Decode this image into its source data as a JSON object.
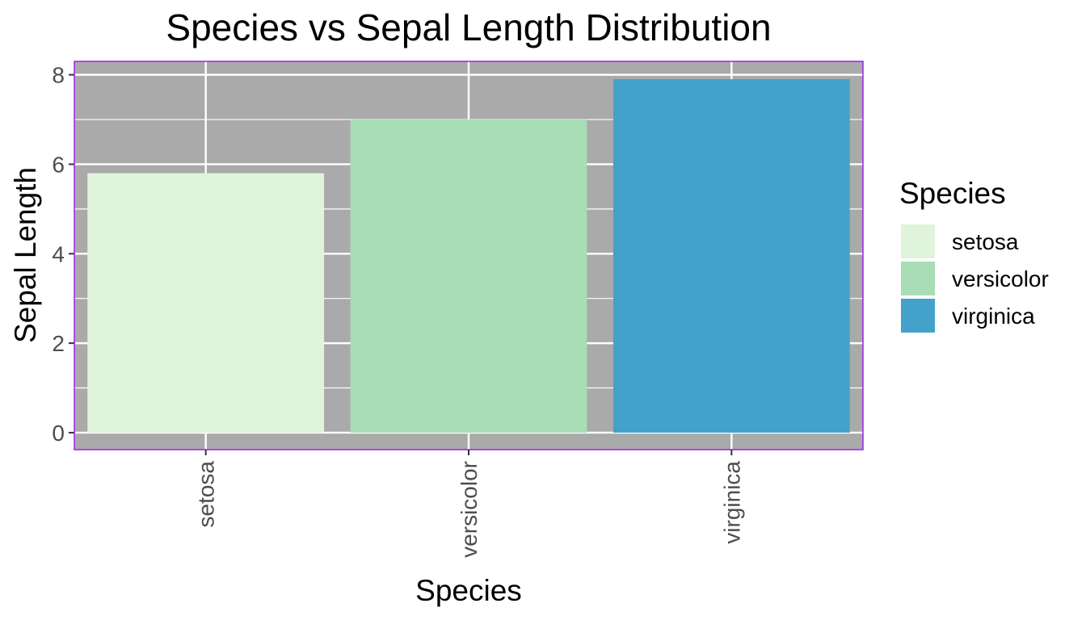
{
  "chart_data": {
    "type": "bar",
    "title": "Species vs Sepal Length Distribution",
    "xlabel": "Species",
    "ylabel": "Sepal Length",
    "categories": [
      "setosa",
      "versicolor",
      "virginica"
    ],
    "values": [
      5.8,
      7.0,
      7.9
    ],
    "colors": [
      "#e0f3db",
      "#a8ddb5",
      "#43a2ca"
    ],
    "ylim": [
      -0.38,
      8.3
    ],
    "yticks": [
      0,
      2,
      4,
      6,
      8
    ],
    "yticks_minor": [
      1,
      3,
      5,
      7
    ],
    "ytick_labels": [
      "0",
      "2",
      "4",
      "6",
      "8"
    ],
    "xtick_rotation": "vertical",
    "grid": true,
    "panel_background": "#aaaaaa",
    "panel_border_color": "#a020f0",
    "gridline_color": "#ffffff",
    "legend": {
      "title": "Species",
      "position": "right",
      "entries": [
        "setosa",
        "versicolor",
        "virginica"
      ]
    }
  }
}
